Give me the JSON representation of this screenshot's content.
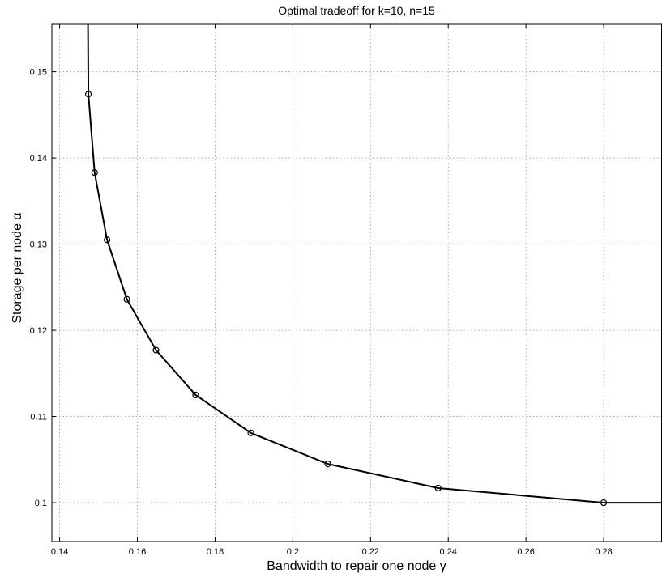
{
  "chart_data": {
    "type": "line",
    "title": "Optimal tradeoff for k=10, n=15",
    "xlabel": "Bandwidth to repair one node γ",
    "ylabel": "Storage per node α",
    "xlim": [
      0.138,
      0.295
    ],
    "ylim": [
      0.0955,
      0.1555
    ],
    "xticks": [
      0.14,
      0.16,
      0.18,
      0.2,
      0.22,
      0.24,
      0.26,
      0.28
    ],
    "xtick_labels": [
      "0.14",
      "0.16",
      "0.18",
      "0.2",
      "0.22",
      "0.24",
      "0.26",
      "0.28"
    ],
    "yticks": [
      0.1,
      0.11,
      0.12,
      0.13,
      0.14,
      0.15
    ],
    "ytick_labels": [
      "0.1",
      "0.11",
      "0.12",
      "0.13",
      "0.14",
      "0.15"
    ],
    "grid": true,
    "series": [
      {
        "color": "#000000",
        "marker": "circle",
        "x": [
          0.1473,
          0.1474,
          0.149,
          0.1522,
          0.1573,
          0.1648,
          0.175,
          0.1892,
          0.209,
          0.2374,
          0.28,
          0.295
        ],
        "y": [
          0.1555,
          0.1474,
          0.1383,
          0.1305,
          0.1236,
          0.1177,
          0.1125,
          0.1081,
          0.1045,
          0.1017,
          0.1,
          0.1
        ],
        "marker_indices": [
          1,
          2,
          3,
          4,
          5,
          6,
          7,
          8,
          9,
          10
        ]
      }
    ]
  }
}
